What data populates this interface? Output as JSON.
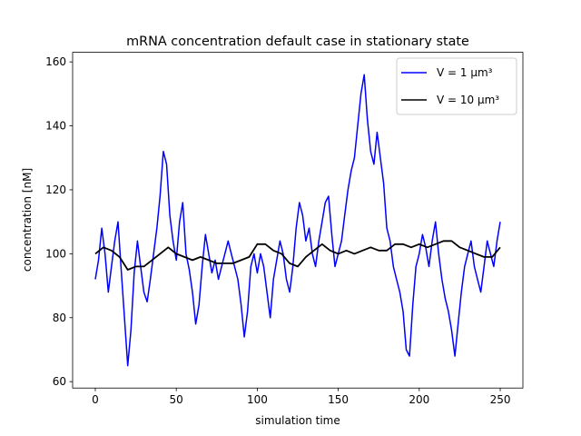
{
  "chart_data": {
    "type": "line",
    "title": "mRNA concentration default case in stationary state",
    "xlabel": "simulation time",
    "ylabel": "concentration [nM]",
    "xlim": [
      -14,
      264
    ],
    "ylim": [
      58,
      163
    ],
    "xticks": [
      0,
      50,
      100,
      150,
      200,
      250
    ],
    "yticks": [
      60,
      80,
      100,
      120,
      140,
      160
    ],
    "grid": false,
    "legend": {
      "placement": "top-right"
    },
    "series": [
      {
        "name": "V = 1 μm³",
        "color": "#0000ff",
        "x": [
          0,
          2,
          4,
          6,
          8,
          10,
          12,
          14,
          16,
          18,
          20,
          22,
          24,
          26,
          28,
          30,
          32,
          34,
          36,
          38,
          40,
          42,
          44,
          46,
          48,
          50,
          52,
          54,
          56,
          58,
          60,
          62,
          64,
          66,
          68,
          70,
          72,
          74,
          76,
          78,
          80,
          82,
          84,
          86,
          88,
          90,
          92,
          94,
          96,
          98,
          100,
          102,
          104,
          106,
          108,
          110,
          112,
          114,
          116,
          118,
          120,
          122,
          124,
          126,
          128,
          130,
          132,
          134,
          136,
          138,
          140,
          142,
          144,
          146,
          148,
          150,
          152,
          154,
          156,
          158,
          160,
          162,
          164,
          166,
          168,
          170,
          172,
          174,
          176,
          178,
          180,
          182,
          184,
          186,
          188,
          190,
          192,
          194,
          196,
          198,
          200,
          202,
          204,
          206,
          208,
          210,
          212,
          214,
          216,
          218,
          220,
          222,
          224,
          226,
          228,
          230,
          232,
          234,
          236,
          238,
          240,
          242,
          244,
          246,
          248,
          250
        ],
        "values": [
          92,
          98,
          108,
          100,
          88,
          96,
          104,
          110,
          95,
          80,
          65,
          76,
          94,
          104,
          96,
          88,
          85,
          92,
          100,
          108,
          118,
          132,
          128,
          112,
          104,
          98,
          110,
          116,
          100,
          95,
          88,
          78,
          84,
          96,
          106,
          100,
          94,
          98,
          92,
          96,
          100,
          104,
          100,
          96,
          92,
          84,
          74,
          82,
          96,
          100,
          94,
          100,
          96,
          88,
          80,
          92,
          98,
          104,
          100,
          92,
          88,
          96,
          108,
          116,
          112,
          104,
          108,
          100,
          96,
          104,
          110,
          116,
          118,
          106,
          96,
          100,
          104,
          112,
          120,
          126,
          130,
          140,
          150,
          156,
          142,
          132,
          128,
          138,
          130,
          122,
          108,
          104,
          96,
          92,
          88,
          82,
          70,
          68,
          84,
          96,
          100,
          106,
          102,
          96,
          104,
          110,
          100,
          92,
          86,
          82,
          76,
          68,
          78,
          88,
          96,
          100,
          104,
          96,
          92,
          88,
          96,
          104,
          100,
          96,
          104,
          110
        ]
      },
      {
        "name": "V = 10 μm³",
        "color": "#000000",
        "x": [
          0,
          5,
          10,
          15,
          20,
          25,
          30,
          35,
          40,
          45,
          50,
          55,
          60,
          65,
          70,
          75,
          80,
          85,
          90,
          95,
          100,
          105,
          110,
          115,
          120,
          125,
          130,
          135,
          140,
          145,
          150,
          155,
          160,
          165,
          170,
          175,
          180,
          185,
          190,
          195,
          200,
          205,
          210,
          215,
          220,
          225,
          230,
          235,
          240,
          245,
          250
        ],
        "values": [
          100,
          102,
          101,
          99,
          95,
          96,
          96,
          98,
          100,
          102,
          100,
          99,
          98,
          99,
          98,
          97,
          97,
          97,
          98,
          99,
          103,
          103,
          101,
          100,
          97,
          96,
          99,
          101,
          103,
          101,
          100,
          101,
          100,
          101,
          102,
          101,
          101,
          103,
          103,
          102,
          103,
          102,
          103,
          104,
          104,
          102,
          101,
          100,
          99,
          99,
          102
        ]
      }
    ]
  }
}
